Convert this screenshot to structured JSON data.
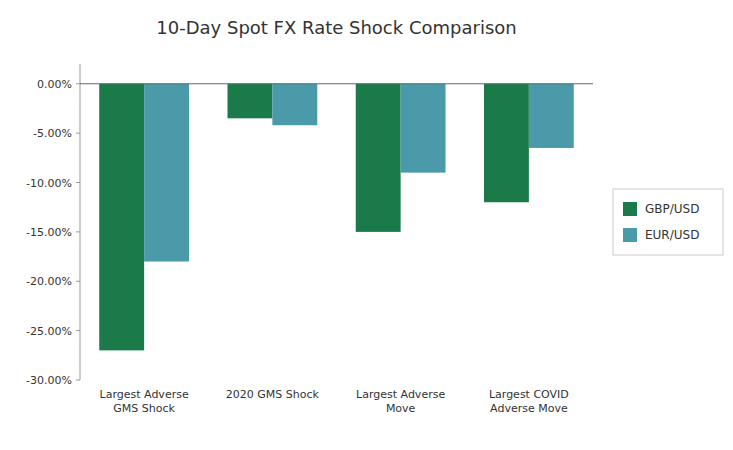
{
  "chart_data": {
    "type": "bar",
    "title": "10-Day Spot FX Rate Shock Comparison",
    "categories": [
      "Largest Adverse\nGMS Shock",
      "2020 GMS Shock",
      "Largest Adverse\nMove",
      "Largest COVID\nAdverse Move"
    ],
    "series": [
      {
        "name": "GBP/USD",
        "color": "#1a7a4a",
        "values": [
          -0.27,
          -0.035,
          -0.15,
          -0.12
        ]
      },
      {
        "name": "EUR/USD",
        "color": "#4a9aaa",
        "values": [
          -0.18,
          -0.042,
          -0.09,
          -0.065
        ]
      }
    ],
    "ylim": [
      -0.3,
      0.02
    ],
    "yticks": [
      {
        "value": 0.0,
        "label": "0.00%"
      },
      {
        "value": -0.05,
        "label": "-5.00%"
      },
      {
        "value": -0.1,
        "label": "-10.00%"
      },
      {
        "value": -0.15,
        "label": "-15.00%"
      },
      {
        "value": -0.2,
        "label": "-20.00%"
      },
      {
        "value": -0.25,
        "label": "-25.00%"
      },
      {
        "value": -0.3,
        "label": "-30.00%"
      }
    ],
    "grid": false,
    "legend": "right"
  }
}
